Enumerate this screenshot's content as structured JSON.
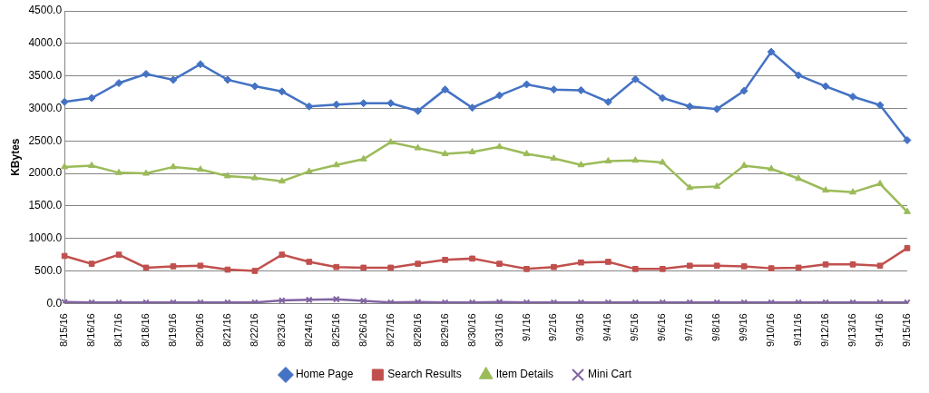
{
  "chart_data": {
    "type": "line",
    "y_label": "KBytes",
    "categories": [
      "8/15/16",
      "8/16/16",
      "8/17/16",
      "8/18/16",
      "8/19/16",
      "8/20/16",
      "8/21/16",
      "8/22/16",
      "8/23/16",
      "8/24/16",
      "8/25/16",
      "8/26/16",
      "8/27/16",
      "8/28/16",
      "8/29/16",
      "8/30/16",
      "8/31/16",
      "9/1/16",
      "9/2/16",
      "9/3/16",
      "9/4/16",
      "9/5/16",
      "9/6/16",
      "9/7/16",
      "9/8/16",
      "9/9/16",
      "9/10/16",
      "9/11/16",
      "9/12/16",
      "9/13/16",
      "9/14/16",
      "9/15/16"
    ],
    "series": [
      {
        "name": "Home Page",
        "color": "#4472c4",
        "marker": "diamond",
        "values": [
          3100,
          3160,
          3390,
          3530,
          3440,
          3680,
          3440,
          3340,
          3260,
          3030,
          3060,
          3080,
          3080,
          2960,
          3290,
          3010,
          3200,
          3370,
          3290,
          3280,
          3100,
          3450,
          3160,
          3030,
          2990,
          3270,
          3870,
          3510,
          3340,
          3180,
          3050,
          2510
        ]
      },
      {
        "name": "Search Results",
        "color": "#c0504d",
        "marker": "square",
        "values": [
          730,
          610,
          750,
          550,
          570,
          580,
          520,
          500,
          750,
          640,
          560,
          550,
          550,
          610,
          670,
          690,
          610,
          530,
          560,
          630,
          640,
          530,
          530,
          580,
          580,
          570,
          540,
          550,
          600,
          600,
          580,
          850
        ]
      },
      {
        "name": "Item Details",
        "color": "#9bbb59",
        "marker": "triangle",
        "values": [
          2100,
          2120,
          2010,
          2000,
          2100,
          2060,
          1960,
          1930,
          1880,
          2030,
          2130,
          2220,
          2480,
          2390,
          2300,
          2330,
          2410,
          2300,
          2230,
          2130,
          2190,
          2200,
          2170,
          1780,
          1800,
          2120,
          2070,
          1920,
          1740,
          1710,
          1840,
          1410
        ]
      },
      {
        "name": "Mini Cart",
        "color": "#8064a2",
        "marker": "x",
        "values": [
          20,
          15,
          15,
          15,
          15,
          15,
          15,
          15,
          45,
          55,
          65,
          40,
          15,
          20,
          15,
          15,
          20,
          15,
          15,
          15,
          15,
          15,
          15,
          15,
          15,
          15,
          15,
          15,
          15,
          15,
          15,
          15
        ]
      }
    ],
    "ylim": [
      0,
      4500
    ],
    "yticks": [
      {
        "value": 0,
        "label": "0.0"
      },
      {
        "value": 500,
        "label": "500.0"
      },
      {
        "value": 1000,
        "label": "1000.0"
      },
      {
        "value": 1500,
        "label": "1500.0"
      },
      {
        "value": 2000,
        "label": "2000.0"
      },
      {
        "value": 2500,
        "label": "2500.0"
      },
      {
        "value": 3000,
        "label": "3000.0"
      },
      {
        "value": 3500,
        "label": "3500.0"
      },
      {
        "value": 4000,
        "label": "4000.0"
      },
      {
        "value": 4500,
        "label": "4500.0"
      }
    ],
    "grid": true,
    "legend": "bottom"
  }
}
